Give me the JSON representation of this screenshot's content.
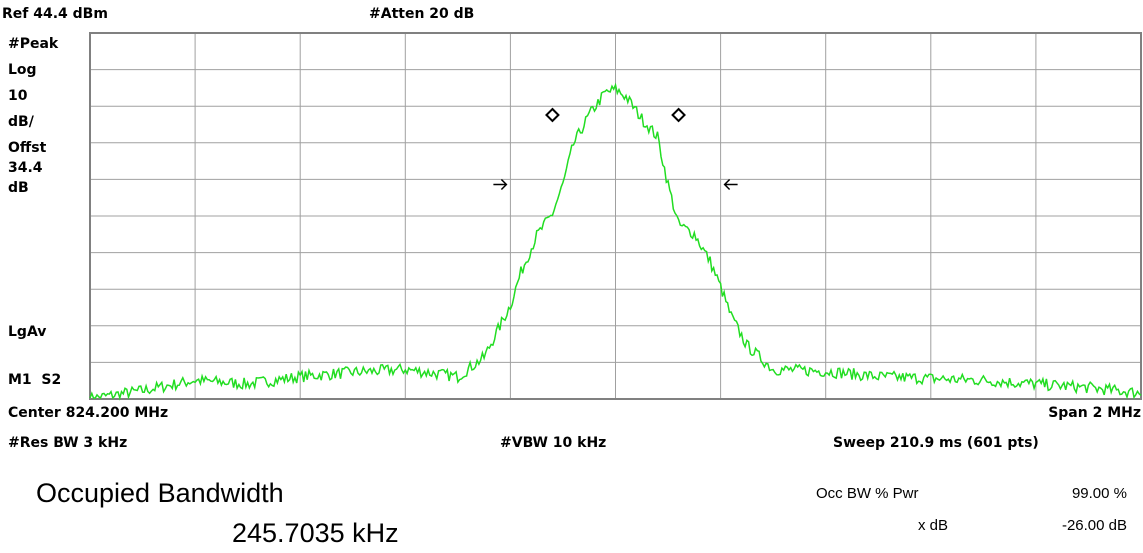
{
  "header": {
    "ref_level": "Ref 44.4 dBm",
    "attenuation": "#Atten 20 dB"
  },
  "left_panel": {
    "detector": "#Peak",
    "scale_type": "Log",
    "scale_value": "10",
    "scale_unit": "dB/",
    "offset_label": "Offst",
    "offset_value": "34.4",
    "offset_unit": "dB",
    "averaging": "LgAv",
    "markers": "M1  S2"
  },
  "footer": {
    "center": "Center 824.200 MHz",
    "span": "Span 2 MHz",
    "res_bw": "#Res BW 3 kHz",
    "vbw": "#VBW 10 kHz",
    "sweep": "Sweep 210.9 ms (601 pts)"
  },
  "result": {
    "title": "Occupied Bandwidth",
    "value": "245.7035 kHz",
    "occ_bw_label": "Occ BW % Pwr",
    "occ_bw_value": "99.00 %",
    "xdb_label": "x dB",
    "xdb_value": "-26.00 dB"
  },
  "colors": {
    "trace": "#22dd22",
    "grid": "#a0a0a0",
    "frame": "#808080"
  },
  "chart_data": {
    "type": "line",
    "x_unit": "MHz",
    "y_unit": "dBm",
    "xlim": [
      823.2,
      825.2
    ],
    "ylim": [
      -55.6,
      44.4
    ],
    "grid": true,
    "series": [
      {
        "x": [
          823.2,
          823.3,
          823.4,
          823.5,
          823.6,
          823.7,
          823.8,
          823.9,
          823.95,
          824.0,
          824.02,
          824.05,
          824.08,
          824.1,
          824.12,
          824.15,
          824.18,
          824.2,
          824.22,
          824.25,
          824.28,
          824.3,
          824.32,
          824.35,
          824.38,
          824.4,
          824.42,
          824.45,
          824.5,
          824.6,
          824.7,
          824.8,
          824.9,
          825.0,
          825.1,
          825.2
        ],
        "y": [
          -55.5,
          -53.3,
          -50.5,
          -51.5,
          -49.5,
          -48.3,
          -47.5,
          -49.5,
          -44.2,
          -30.0,
          -21.0,
          -11.0,
          -5.0,
          3.0,
          14.0,
          22.0,
          28.0,
          29.0,
          27.0,
          21.0,
          16.0,
          3.0,
          -8.0,
          -10.5,
          -18.0,
          -25.0,
          -33.0,
          -41.0,
          -47.5,
          -48.0,
          -49.5,
          -50.0,
          -50.5,
          -51.5,
          -52.5,
          -54.0
        ]
      }
    ],
    "markers": [
      {
        "type": "diamond",
        "x": 824.08,
        "y": 22.0
      },
      {
        "type": "diamond",
        "x": 824.32,
        "y": 22.0
      },
      {
        "type": "arrow-right",
        "x": 823.98,
        "y": 3.0
      },
      {
        "type": "arrow-left",
        "x": 824.42,
        "y": 3.0
      }
    ]
  }
}
